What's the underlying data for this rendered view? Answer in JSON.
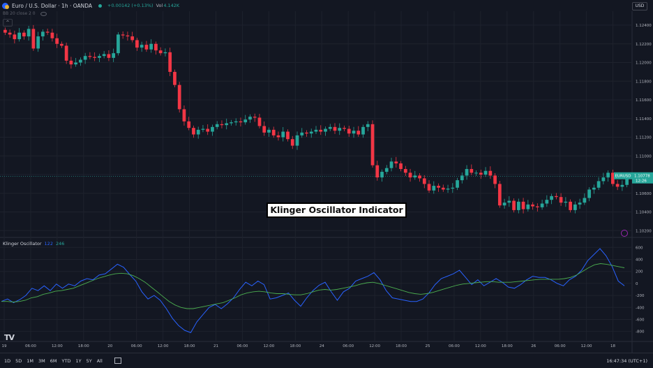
{
  "header": {
    "title": "Euro / U.S. Dollar · 1h · OANDA",
    "change": "+0.00142 (+0.13%)",
    "volume_label": "Vol",
    "volume_value": "4.142K",
    "indicator": "BB 20 close 2 0",
    "currency": "USD"
  },
  "overlay_label": "Klinger Oscillator Indicator",
  "price_tag": {
    "symbol": "EURUSD",
    "price": "1.10778",
    "countdown": "12:26"
  },
  "oscillator": {
    "name": "Klinger Oscillator",
    "param1": "122",
    "param2": "246"
  },
  "colors": {
    "up": "#26a69a",
    "down": "#f23645",
    "ko": "#2962ff",
    "signal": "#4caf50",
    "bg": "#131722"
  },
  "range_buttons": [
    "1D",
    "5D",
    "1M",
    "3M",
    "6M",
    "YTD",
    "1Y",
    "5Y",
    "All"
  ],
  "clock": "16:47:34 (UTC+1)",
  "tv_logo": "TV",
  "chart_data": [
    {
      "type": "candlestick",
      "y_ticks": [
        "1.12400",
        "1.12200",
        "1.12000",
        "1.11800",
        "1.11600",
        "1.11400",
        "1.11200",
        "1.11000",
        "1.10800",
        "1.10600",
        "1.10400",
        "1.10200"
      ],
      "ylim": [
        1.1015,
        1.1252
      ],
      "x_ticks": [
        "19",
        "06:00",
        "12:00",
        "18:00",
        "20",
        "06:00",
        "12:00",
        "18:00",
        "21",
        "06:00",
        "12:00",
        "18:00",
        "24",
        "06:00",
        "12:00",
        "18:00",
        "25",
        "06:00",
        "12:00",
        "18:00",
        "26",
        "06:00",
        "12:00",
        "18"
      ],
      "close": [
        1.1232,
        1.123,
        1.1225,
        1.1232,
        1.1228,
        1.1236,
        1.1215,
        1.1228,
        1.1233,
        1.1232,
        1.1226,
        1.122,
        1.1218,
        1.1202,
        1.1198,
        1.12,
        1.1203,
        1.1207,
        1.1206,
        1.1205,
        1.1207,
        1.1209,
        1.1205,
        1.121,
        1.123,
        1.1229,
        1.1228,
        1.1224,
        1.1216,
        1.1219,
        1.1214,
        1.122,
        1.1213,
        1.121,
        1.1211,
        1.119,
        1.1176,
        1.115,
        1.1137,
        1.113,
        1.1123,
        1.1128,
        1.1129,
        1.1126,
        1.1131,
        1.1134,
        1.1133,
        1.1135,
        1.1136,
        1.1137,
        1.1136,
        1.1139,
        1.1142,
        1.1141,
        1.1132,
        1.1125,
        1.1128,
        1.1122,
        1.112,
        1.1126,
        1.1118,
        1.1111,
        1.1122,
        1.1125,
        1.1124,
        1.1126,
        1.1128,
        1.1126,
        1.1129,
        1.1131,
        1.1127,
        1.113,
        1.1129,
        1.1124,
        1.1127,
        1.1123,
        1.1131,
        1.1134,
        1.109,
        1.1077,
        1.1083,
        1.1087,
        1.1094,
        1.1092,
        1.1086,
        1.1082,
        1.1077,
        1.1079,
        1.1076,
        1.107,
        1.1063,
        1.1068,
        1.1066,
        1.1064,
        1.1065,
        1.1066,
        1.1074,
        1.1079,
        1.1086,
        1.1082,
        1.1082,
        1.108,
        1.1084,
        1.1079,
        1.107,
        1.1047,
        1.105,
        1.1052,
        1.1042,
        1.1051,
        1.1043,
        1.1048,
        1.1046,
        1.1045,
        1.1049,
        1.1053,
        1.1057,
        1.1056,
        1.105,
        1.1051,
        1.1042,
        1.1048,
        1.105,
        1.1055,
        1.1064,
        1.1066,
        1.1073,
        1.1077,
        1.1082,
        1.107,
        1.1067,
        1.1069,
        1.1078
      ]
    },
    {
      "type": "line",
      "y_ticks": [
        "600",
        "400",
        "200",
        "0",
        "-200",
        "-400",
        "-600",
        "-800"
      ],
      "ylim": [
        -920,
        650
      ],
      "series": [
        {
          "name": "122",
          "values": [
            -300,
            -260,
            -320,
            -270,
            -200,
            -80,
            -120,
            -40,
            -120,
            -10,
            -80,
            -10,
            -40,
            40,
            80,
            60,
            140,
            160,
            240,
            320,
            270,
            150,
            40,
            -140,
            -260,
            -200,
            -280,
            -420,
            -580,
            -700,
            -780,
            -820,
            -640,
            -520,
            -400,
            -350,
            -420,
            -340,
            -240,
            -100,
            20,
            -40,
            40,
            -20,
            -260,
            -240,
            -200,
            -160,
            -280,
            -380,
            -240,
            -120,
            -30,
            20,
            -140,
            -280,
            -140,
            -80,
            40,
            80,
            120,
            180,
            60,
            -120,
            -240,
            -260,
            -280,
            -300,
            -300,
            -260,
            -160,
            -20,
            80,
            120,
            160,
            220,
            100,
            -20,
            60,
            -40,
            20,
            80,
            20,
            -60,
            -80,
            -20,
            60,
            120,
            100,
            100,
            60,
            0,
            -40,
            60,
            120,
            220,
            380,
            480,
            580,
            460,
            280,
            40,
            -40
          ]
        },
        {
          "name": "246",
          "values": [
            -300,
            -300,
            -310,
            -300,
            -280,
            -240,
            -220,
            -180,
            -160,
            -130,
            -120,
            -100,
            -80,
            -40,
            0,
            40,
            80,
            110,
            140,
            160,
            170,
            160,
            130,
            80,
            20,
            -60,
            -140,
            -220,
            -300,
            -360,
            -400,
            -420,
            -420,
            -400,
            -380,
            -360,
            -340,
            -320,
            -280,
            -240,
            -190,
            -160,
            -140,
            -130,
            -140,
            -160,
            -170,
            -170,
            -180,
            -190,
            -190,
            -170,
            -140,
            -110,
            -100,
            -110,
            -100,
            -80,
            -60,
            -40,
            -10,
            10,
            20,
            0,
            -30,
            -60,
            -90,
            -120,
            -150,
            -170,
            -180,
            -170,
            -150,
            -120,
            -90,
            -60,
            -30,
            -10,
            0,
            10,
            20,
            30,
            30,
            20,
            20,
            20,
            30,
            40,
            50,
            60,
            70,
            70,
            70,
            70,
            80,
            100,
            140,
            200,
            260,
            310,
            330,
            320,
            300,
            280,
            260
          ]
        }
      ]
    }
  ]
}
